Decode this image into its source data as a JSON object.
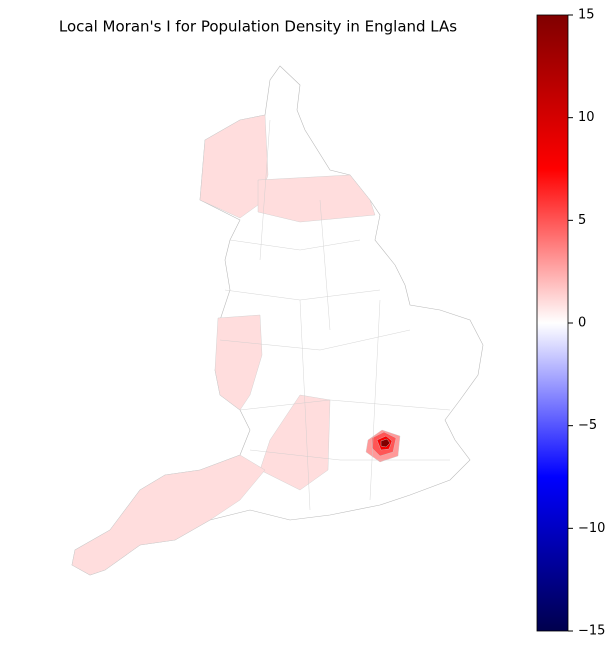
{
  "chart_data": {
    "type": "choropleth",
    "title": "Local Moran's I for Population Density in England LAs",
    "colormap": "seismic",
    "clim": [
      -15,
      15
    ],
    "cticks": [
      {
        "value": -15,
        "label": "−15"
      },
      {
        "value": -10,
        "label": "−10"
      },
      {
        "value": -5,
        "label": "−5"
      },
      0,
      5,
      10,
      15
    ],
    "values": [
      1,
      1,
      1,
      1,
      1,
      3,
      5,
      8,
      15
    ]
  }
}
